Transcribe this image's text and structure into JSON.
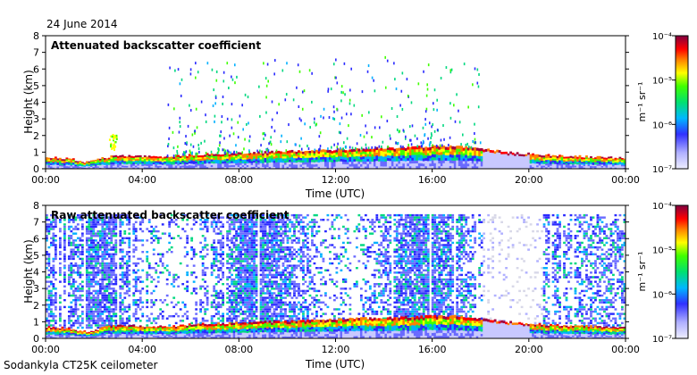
{
  "date": "24 June 2014",
  "instrument": "Sodankyla CT25K ceilometer",
  "chart_data": [
    {
      "type": "heatmap",
      "title": "Attenuated backscatter coefficient",
      "xlabel": "Time (UTC)",
      "ylabel": "Height (km)",
      "x_ticks": [
        "00:00",
        "04:00",
        "08:00",
        "12:00",
        "16:00",
        "20:00",
        "00:00"
      ],
      "y_ticks": [
        "0",
        "1",
        "2",
        "3",
        "4",
        "5",
        "6",
        "7",
        "8"
      ],
      "xlim_hours": [
        0,
        24
      ],
      "ylim_km": [
        0,
        8
      ],
      "colorbar": {
        "scale": "log",
        "units": "m⁻¹ sr⁻¹",
        "ticks": [
          "10⁻⁷",
          "10⁻⁶",
          "10⁻⁵",
          "10⁻⁴"
        ],
        "range": [
          1e-07,
          0.0001
        ]
      },
      "boundary_layer_top_km": [
        [
          0,
          0.7
        ],
        [
          1,
          0.6
        ],
        [
          1.5,
          0.4
        ],
        [
          2,
          0.5
        ],
        [
          2.5,
          0.7
        ],
        [
          3,
          0.8
        ],
        [
          4,
          0.75
        ],
        [
          5,
          0.7
        ],
        [
          6,
          0.85
        ],
        [
          7,
          0.9
        ],
        [
          8,
          0.95
        ],
        [
          9,
          1.0
        ],
        [
          10,
          1.05
        ],
        [
          11,
          1.1
        ],
        [
          12,
          1.15
        ],
        [
          13,
          1.2
        ],
        [
          14,
          1.25
        ],
        [
          15,
          1.3
        ],
        [
          16,
          1.35
        ],
        [
          17,
          1.35
        ],
        [
          18,
          1.2
        ],
        [
          19,
          1.0
        ],
        [
          20,
          0.9
        ],
        [
          21,
          0.8
        ],
        [
          22,
          0.75
        ],
        [
          23,
          0.7
        ],
        [
          24,
          0.65
        ]
      ]
    },
    {
      "type": "heatmap",
      "title": "Raw attenuated backscatter coefficient",
      "xlabel": "Time (UTC)",
      "ylabel": "Height (km)",
      "x_ticks": [
        "00:00",
        "04:00",
        "08:00",
        "12:00",
        "16:00",
        "20:00",
        "00:00"
      ],
      "y_ticks": [
        "0",
        "1",
        "2",
        "3",
        "4",
        "5",
        "6",
        "7",
        "8"
      ],
      "xlim_hours": [
        0,
        24
      ],
      "ylim_km": [
        0,
        8
      ],
      "colorbar": {
        "scale": "log",
        "units": "m⁻¹ sr⁻¹",
        "ticks": [
          "10⁻⁷",
          "10⁻⁶",
          "10⁻⁵",
          "10⁻⁴"
        ],
        "range": [
          1e-07,
          0.0001
        ]
      }
    }
  ]
}
